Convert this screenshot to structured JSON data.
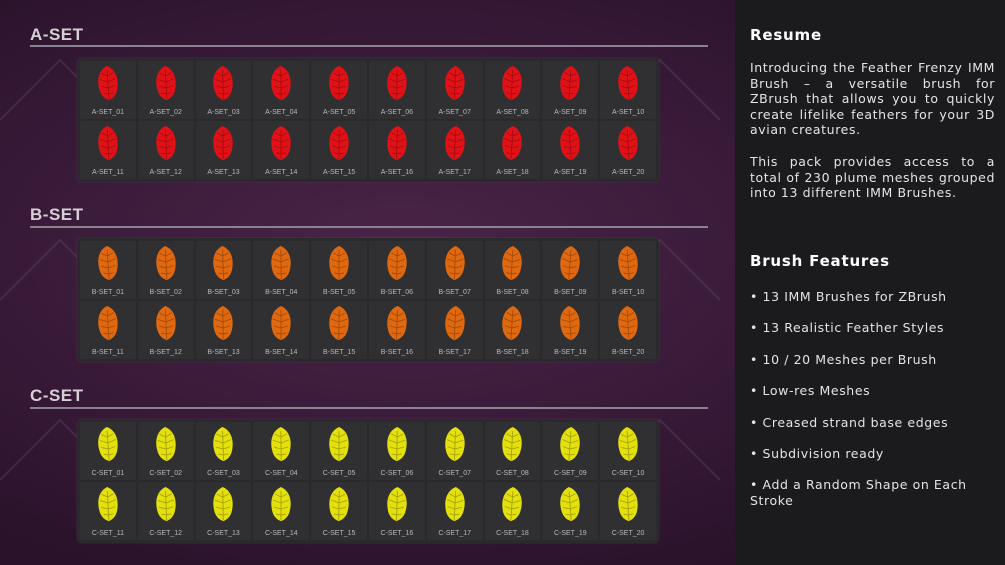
{
  "sets": [
    {
      "title": "A-SET",
      "color": "#e01217",
      "items": [
        "A-SET_01",
        "A-SET_02",
        "A-SET_03",
        "A-SET_04",
        "A-SET_05",
        "A-SET_06",
        "A-SET_07",
        "A-SET_08",
        "A-SET_09",
        "A-SET_10",
        "A-SET_11",
        "A-SET_12",
        "A-SET_13",
        "A-SET_14",
        "A-SET_15",
        "A-SET_16",
        "A-SET_17",
        "A-SET_18",
        "A-SET_19",
        "A-SET_20"
      ]
    },
    {
      "title": "B-SET",
      "color": "#e0680f",
      "items": [
        "B-SET_01",
        "B-SET_02",
        "B-SET_03",
        "B-SET_04",
        "B-SET_05",
        "B-SET_06",
        "B-SET_07",
        "B-SET_08",
        "B-SET_09",
        "B-SET_10",
        "B-SET_11",
        "B-SET_12",
        "B-SET_13",
        "B-SET_14",
        "B-SET_15",
        "B-SET_16",
        "B-SET_17",
        "B-SET_18",
        "B-SET_19",
        "B-SET_20"
      ]
    },
    {
      "title": "C-SET",
      "color": "#e4e00c",
      "items": [
        "C-SET_01",
        "C-SET_02",
        "C-SET_03",
        "C-SET_04",
        "C-SET_05",
        "C-SET_06",
        "C-SET_07",
        "C-SET_08",
        "C-SET_09",
        "C-SET_10",
        "C-SET_11",
        "C-SET_12",
        "C-SET_13",
        "C-SET_14",
        "C-SET_15",
        "C-SET_16",
        "C-SET_17",
        "C-SET_18",
        "C-SET_19",
        "C-SET_20"
      ]
    }
  ],
  "sidebar": {
    "resume_heading": "Resume",
    "intro": "Introducing the Feather Frenzy IMM Brush – a versatile brush for ZBrush that allows you to quickly create lifelike feathers for your 3D avian creatures.",
    "pack": "This pack provides access to a total of 230 plume meshes grouped into 13 different IMM Brushes.",
    "features_heading": "Brush Features",
    "features": [
      "• 13 IMM Brushes for ZBrush",
      "• 13 Realistic Feather Styles",
      "• 10 / 20 Meshes per Brush",
      "• Low-res Meshes",
      "• Creased strand base edges",
      "• Subdivision ready",
      "• Add a Random Shape on Each Stroke"
    ]
  },
  "icons": {
    "thumbnail": "feather-icon"
  }
}
